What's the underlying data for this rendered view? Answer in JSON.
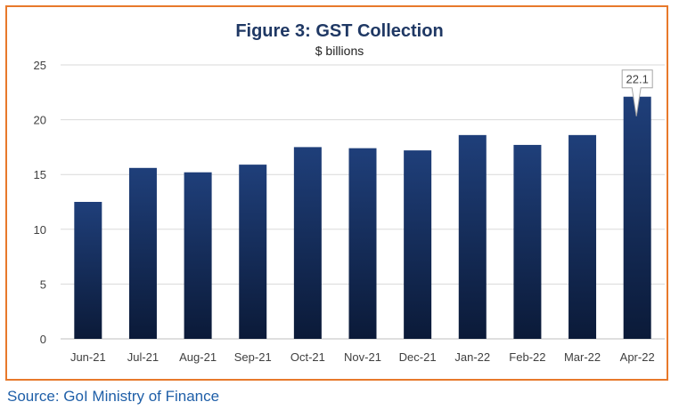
{
  "chart_data": {
    "type": "bar",
    "title": "Figure 3: GST Collection",
    "subtitle": "$ billions",
    "categories": [
      "Jun-21",
      "Jul-21",
      "Aug-21",
      "Sep-21",
      "Oct-21",
      "Nov-21",
      "Dec-21",
      "Jan-22",
      "Feb-22",
      "Mar-22",
      "Apr-22"
    ],
    "values": [
      12.5,
      15.6,
      15.2,
      15.9,
      17.5,
      17.4,
      17.2,
      18.6,
      17.7,
      18.6,
      22.1
    ],
    "ylim": [
      0,
      25
    ],
    "yticks": [
      "0",
      "5",
      "10",
      "15",
      "20",
      "25"
    ],
    "grid": true,
    "callout": {
      "category": "Apr-22",
      "label": "22.1"
    },
    "bar_color_top": "#1F3F7A",
    "bar_color_bottom": "#0B1A38"
  },
  "colors": {
    "frame": "#E8792B",
    "title": "#1F3864",
    "source": "#1F5FA8",
    "grid": "#D9D9D9"
  },
  "source": "Source: GoI Ministry of Finance"
}
